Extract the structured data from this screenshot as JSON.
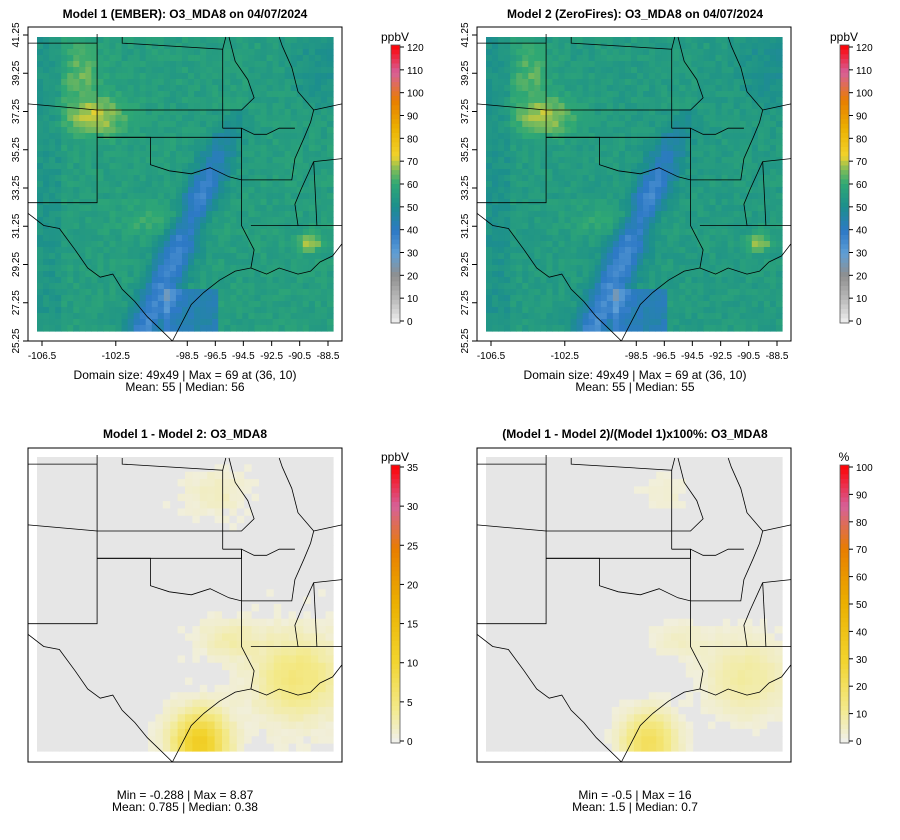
{
  "panels": [
    {
      "title": "Model 1 (EMBER): O3_MDA8 on 04/07/2024",
      "unit": "ppbV",
      "colorbar_ticks": [
        "120",
        "110",
        "100",
        "90",
        "80",
        "70",
        "60",
        "50",
        "40",
        "30",
        "20",
        "10",
        "0"
      ],
      "show_axes": true,
      "x_ticks": [
        "-106.5",
        "-102.5",
        "-98.5",
        "-96.5",
        "-94.5",
        "-92.5",
        "-90.5",
        "-88.5"
      ],
      "y_ticks": [
        "41.25",
        "39.25",
        "37.25",
        "35.25",
        "33.25",
        "31.25",
        "29.25",
        "27.25",
        "25.25"
      ],
      "stats_line1": "Domain size: 49x49 | Max = 69 at (36, 10)",
      "stats_line2": "Mean: 55 |  Median: 56",
      "field": "ozone",
      "field_range": [
        0,
        120
      ]
    },
    {
      "title": "Model 2 (ZeroFires): O3_MDA8 on 04/07/2024",
      "unit": "ppbV",
      "colorbar_ticks": [
        "120",
        "110",
        "100",
        "90",
        "80",
        "70",
        "60",
        "50",
        "40",
        "30",
        "20",
        "10",
        "0"
      ],
      "show_axes": true,
      "x_ticks": [
        "-106.5",
        "-102.5",
        "-98.5",
        "-96.5",
        "-94.5",
        "-92.5",
        "-90.5",
        "-88.5"
      ],
      "y_ticks": [
        "41.25",
        "39.25",
        "37.25",
        "35.25",
        "33.25",
        "31.25",
        "29.25",
        "27.25",
        "25.25"
      ],
      "stats_line1": "Domain size: 49x49 | Max = 69 at (36, 10)",
      "stats_line2": "Mean: 55 |  Median: 55",
      "field": "ozone",
      "field_range": [
        0,
        120
      ]
    },
    {
      "title": "Model 1 - Model 2: O3_MDA8",
      "unit": "ppbV",
      "colorbar_ticks": [
        "35",
        "30",
        "25",
        "20",
        "15",
        "10",
        "5",
        "0"
      ],
      "show_axes": false,
      "x_ticks": [],
      "y_ticks": [],
      "stats_line1": "Min = -0.288 | Max = 8.87",
      "stats_line2": "Mean: 0.785 |  Median: 0.38",
      "field": "diff",
      "field_range": [
        0,
        35
      ]
    },
    {
      "title": "(Model 1 - Model 2)/(Model 1)x100%: O3_MDA8",
      "unit": "%",
      "colorbar_ticks": [
        "100",
        "90",
        "80",
        "70",
        "60",
        "50",
        "40",
        "30",
        "20",
        "10",
        "0"
      ],
      "show_axes": false,
      "x_ticks": [],
      "y_ticks": [],
      "stats_line1": "Min = -0.5 | Max = 16",
      "stats_line2": "Mean: 1.5 |  Median: 0.7",
      "field": "pct",
      "field_range": [
        0,
        100
      ]
    }
  ],
  "colors": {
    "ramp_high": "#ff0000",
    "ramp_magenta": "#d6609a",
    "ramp_orange": "#e87d00",
    "ramp_yellow": "#f2d32c",
    "ramp_lime": "#a9cb46",
    "ramp_green": "#2fa874",
    "ramp_blue": "#2d79c6",
    "ramp_low": "#f0f0f0",
    "border_lines": "#000000"
  }
}
